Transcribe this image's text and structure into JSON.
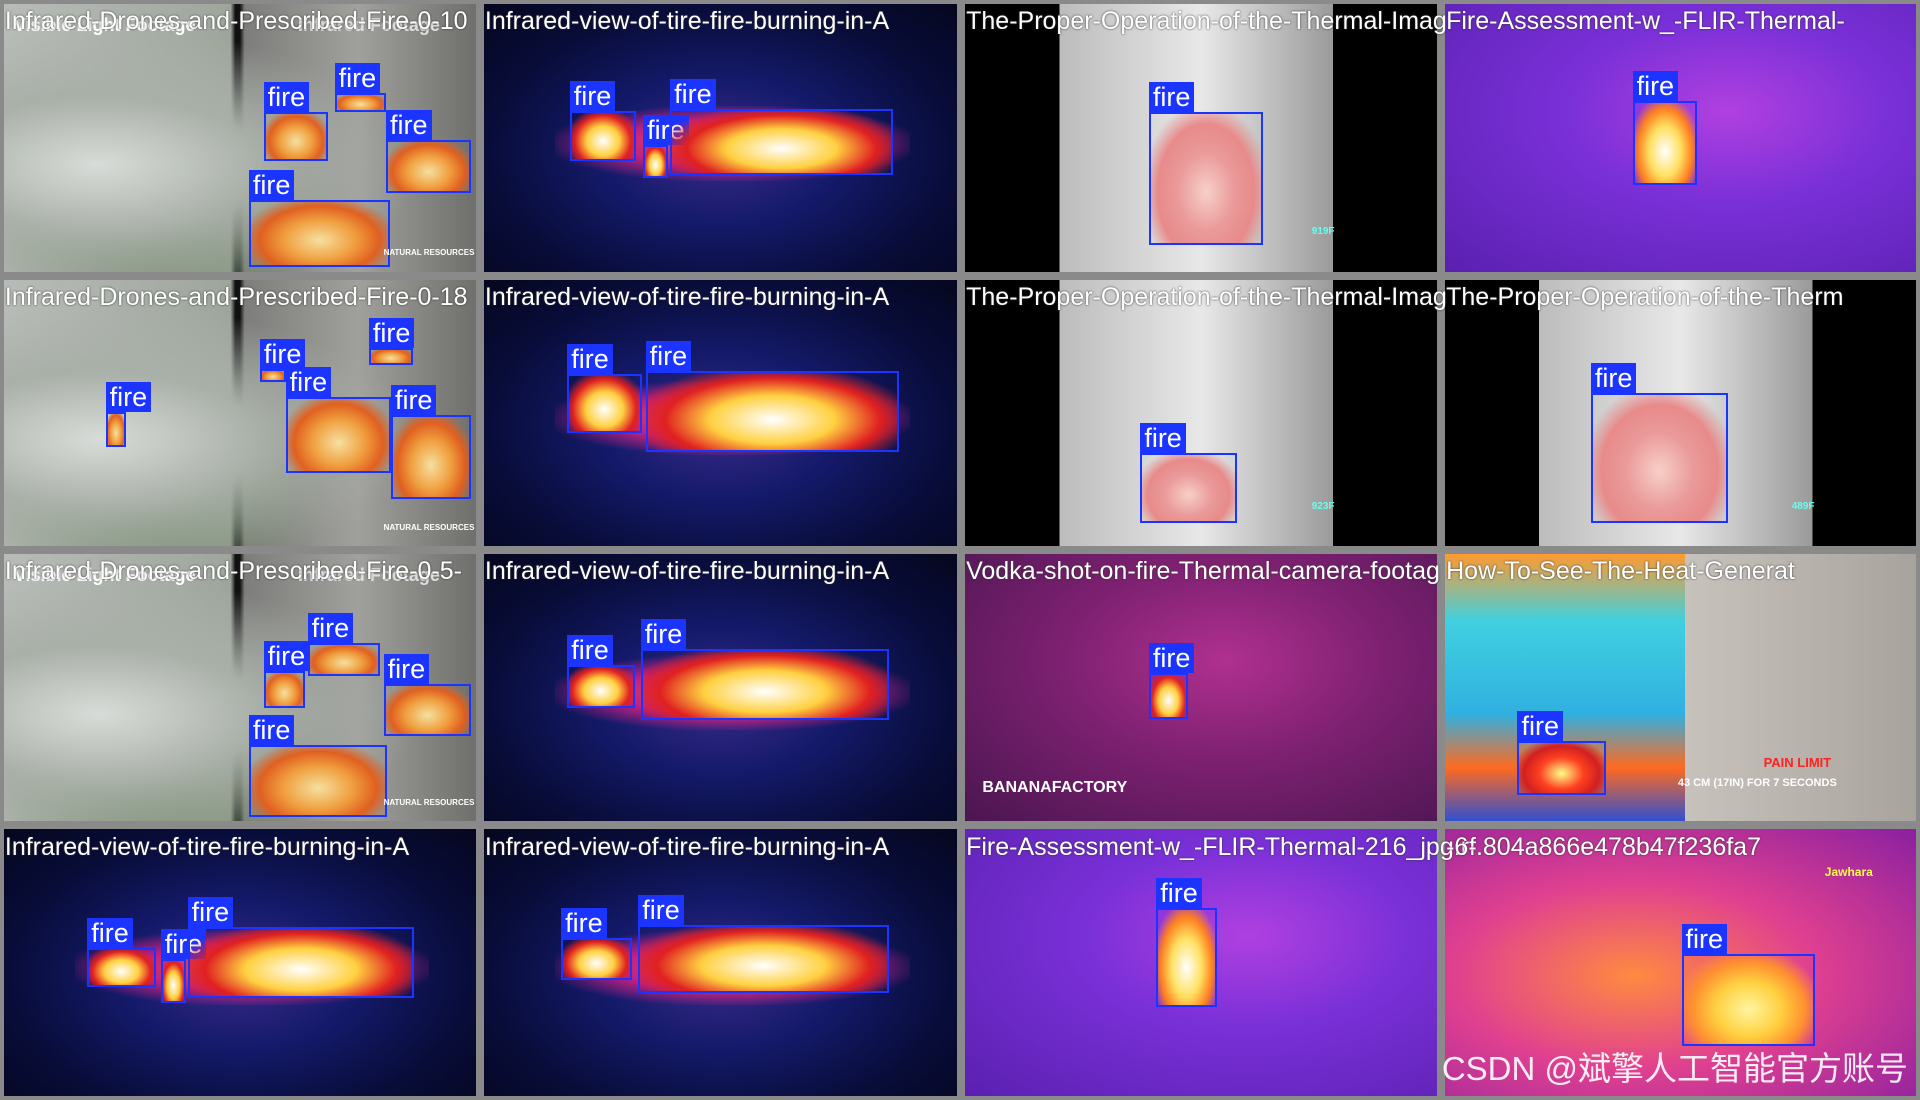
{
  "tiles": [
    {
      "title": "Infrared-Drones-and-Prescribed-Fire-0-10",
      "detections": [
        "fire",
        "fire",
        "fire",
        "fire"
      ],
      "overlay_texts": [
        "Visible Light Footage",
        "Infrared Footage",
        "NATURAL RESOURCES"
      ]
    },
    {
      "title": "Infrared-view-of-tire-fire-burning-in-A",
      "detections": [
        "fire",
        "fire",
        "fire"
      ]
    },
    {
      "title": "The-Proper-Operation-of-the-Thermal-Imag",
      "detections": [
        "fire"
      ],
      "overlay_texts": [
        "919F"
      ]
    },
    {
      "title": "Fire-Assessment-w_-FLIR-Thermal-",
      "detections": [
        "fire"
      ]
    },
    {
      "title": "Infrared-Drones-and-Prescribed-Fire-0-18",
      "detections": [
        "fire",
        "fire",
        "fire",
        "fire",
        "fire"
      ],
      "overlay_texts": [
        "NATURAL RESOURCES"
      ]
    },
    {
      "title": "Infrared-view-of-tire-fire-burning-in-A",
      "detections": [
        "fire",
        "fire"
      ]
    },
    {
      "title": "The-Proper-Operation-of-the-Thermal-Imag",
      "detections": [
        "fire"
      ],
      "overlay_texts": [
        "923F"
      ]
    },
    {
      "title": "The-Proper-Operation-of-the-Therm",
      "detections": [
        "fire"
      ],
      "overlay_texts": [
        "489F"
      ]
    },
    {
      "title": "Infrared-Drones-and-Prescribed-Fire-0-5-",
      "detections": [
        "fire",
        "fire",
        "fire",
        "fire"
      ],
      "overlay_texts": [
        "Visible Light Footage",
        "Infrared Footage",
        "NATURAL RESOURCES"
      ]
    },
    {
      "title": "Infrared-view-of-tire-fire-burning-in-A",
      "detections": [
        "fire",
        "fire"
      ]
    },
    {
      "title": "Vodka-shot-on-fire-Thermal-camera-footag",
      "detections": [
        "fire"
      ],
      "overlay_texts": [
        "BANANAFACTORY"
      ]
    },
    {
      "title": "How-To-See-The-Heat-Generat",
      "detections": [
        "fire"
      ],
      "overlay_texts": [
        "PAIN LIMIT",
        "43 CM (17IN) FOR 7 SECONDS"
      ]
    },
    {
      "title": "Infrared-view-of-tire-fire-burning-in-A",
      "detections": [
        "fire",
        "fire",
        "fire"
      ]
    },
    {
      "title": "Infrared-view-of-tire-fire-burning-in-A",
      "detections": [
        "fire",
        "fire"
      ]
    },
    {
      "title": "Fire-Assessment-w_-FLIR-Thermal-216_jpg.rf.804a866e478b47f236fa7",
      "detections": [
        "fire"
      ]
    },
    {
      "title": "-6-",
      "detections": [
        "fire"
      ],
      "overlay_texts": [
        "Jawhara"
      ]
    }
  ],
  "watermark": "CSDN @斌擎人工智能官方账号"
}
